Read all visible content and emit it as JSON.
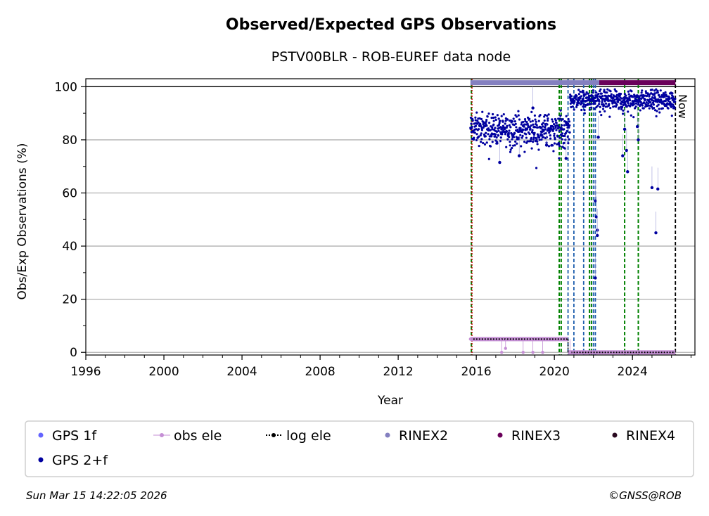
{
  "chart_data": {
    "type": "scatter",
    "title": "Observed/Expected GPS Observations",
    "subtitle": "PSTV00BLR - ROB-EUREF data node",
    "xlabel": "Year",
    "ylabel": "Obs/Exp Observations (%)",
    "xlim": [
      1996,
      2027.2
    ],
    "ylim": [
      -1,
      103
    ],
    "xticks": [
      1996,
      2000,
      2004,
      2008,
      2012,
      2016,
      2020,
      2024
    ],
    "yticks": [
      0,
      20,
      40,
      60,
      80,
      100
    ],
    "grid": "y",
    "now_label": "Now",
    "now_year": 2026.2,
    "reference_line": 100,
    "gps_2f_clusters": [
      {
        "start": 2015.7,
        "end": 2020.8,
        "center": 84,
        "spread": 4
      },
      {
        "start": 2020.8,
        "end": 2026.2,
        "center": 95,
        "spread": 2.5
      }
    ],
    "gps_2f_outliers": [
      {
        "x": 2017.2,
        "y": 71.5
      },
      {
        "x": 2018.2,
        "y": 74
      },
      {
        "x": 2018.9,
        "y": 92
      },
      {
        "x": 2019.6,
        "y": 78
      },
      {
        "x": 2020.6,
        "y": 73
      },
      {
        "x": 2022.1,
        "y": 57
      },
      {
        "x": 2022.15,
        "y": 51
      },
      {
        "x": 2022.2,
        "y": 46
      },
      {
        "x": 2022.2,
        "y": 44
      },
      {
        "x": 2022.1,
        "y": 28
      },
      {
        "x": 2022.25,
        "y": 81
      },
      {
        "x": 2023.5,
        "y": 74
      },
      {
        "x": 2023.7,
        "y": 76
      },
      {
        "x": 2023.75,
        "y": 68
      },
      {
        "x": 2024.3,
        "y": 80
      },
      {
        "x": 2024.25,
        "y": 85
      },
      {
        "x": 2025.0,
        "y": 62
      },
      {
        "x": 2025.2,
        "y": 45
      },
      {
        "x": 2025.3,
        "y": 61.5
      },
      {
        "x": 2023.6,
        "y": 84
      }
    ],
    "obs_ele": [
      {
        "x": 2015.7,
        "y": 5
      },
      {
        "x": 2017.3,
        "y": 0
      },
      {
        "x": 2017.5,
        "y": 1.5
      },
      {
        "x": 2018.4,
        "y": 0
      },
      {
        "x": 2018.9,
        "y": 0
      },
      {
        "x": 2019.4,
        "y": 0
      },
      {
        "x": 2020.8,
        "y": 0
      }
    ],
    "log_ele_segments": [
      {
        "start": 2015.7,
        "end": 2020.7,
        "y": 5
      },
      {
        "start": 2020.7,
        "end": 2026.2,
        "y": 0
      }
    ],
    "rinex2_bar": {
      "start": 2015.7,
      "end": 2022.3,
      "y": 101.5
    },
    "rinex3_bar": {
      "start": 2022.3,
      "end": 2026.2,
      "y": 101.5
    },
    "vlines_green": [
      2015.75,
      2020.25,
      2020.35,
      2021.8,
      2021.9,
      2023.6,
      2024.3
    ],
    "vlines_blue": [
      2020.7,
      2021.0,
      2021.5,
      2022.0,
      2022.1
    ],
    "vline_red": 2015.78,
    "legend_position": "bottom",
    "legend": [
      {
        "label": "GPS 1f",
        "color": "#6464ff",
        "marker": "dot"
      },
      {
        "label": "obs ele",
        "color": "#c58fd5",
        "marker": "dot-line"
      },
      {
        "label": "log ele",
        "color": "#000000",
        "marker": "dot-dotted"
      },
      {
        "label": "RINEX2",
        "color": "#8480c0",
        "marker": "dot"
      },
      {
        "label": "RINEX3",
        "color": "#6a005a",
        "marker": "dot"
      },
      {
        "label": "RINEX4",
        "color": "#2a0a20",
        "marker": "dot"
      },
      {
        "label": "GPS 2+f",
        "color": "#0000a0",
        "marker": "dot"
      }
    ]
  },
  "footer": {
    "timestamp": "Sun Mar 15 14:22:05 2026",
    "copyright": "©GNSS@ROB"
  }
}
